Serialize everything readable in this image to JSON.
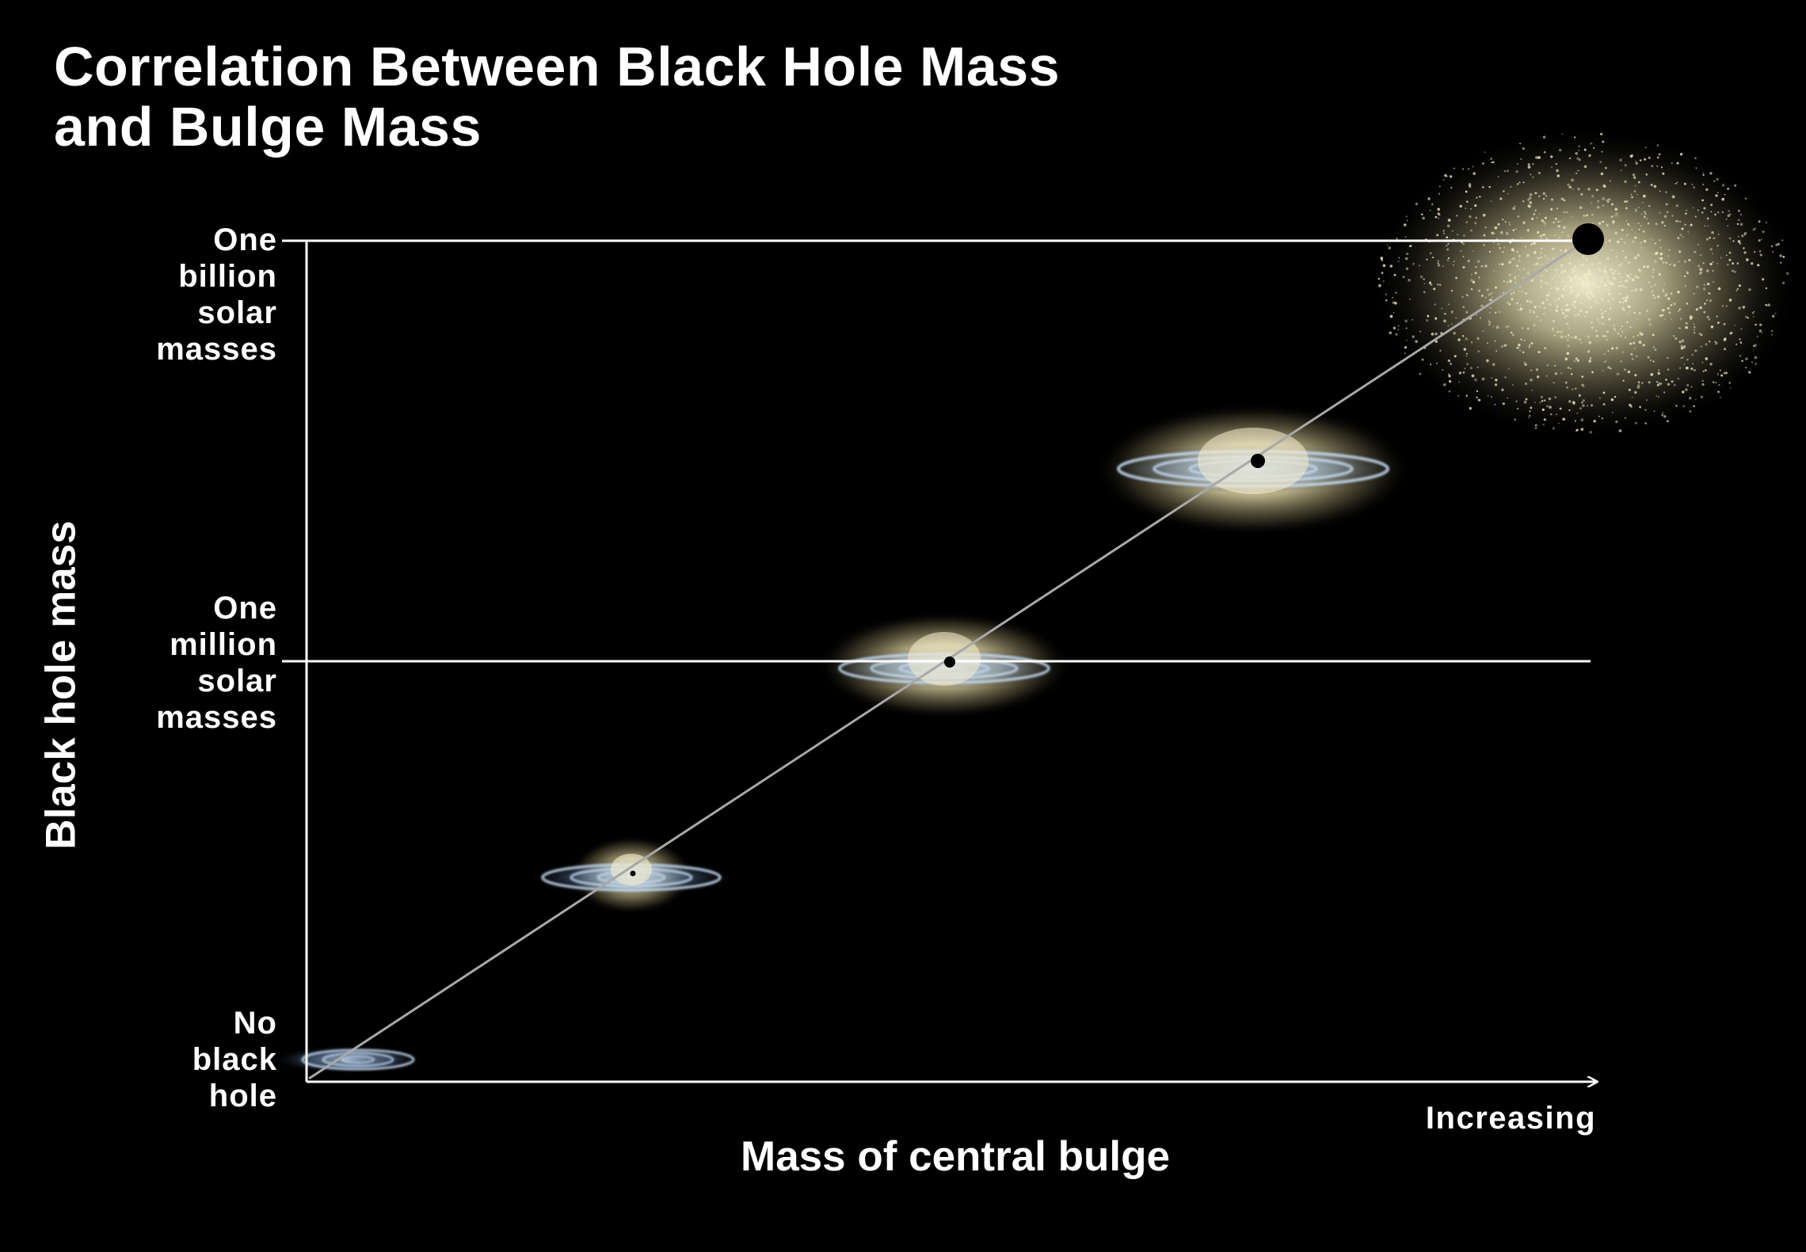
{
  "title": {
    "line1": "Correlation Between Black Hole Mass",
    "line2": "and Bulge Mass"
  },
  "axes": {
    "y_title": "Black hole mass",
    "x_title": "Mass of central bulge",
    "x_direction": "Increasing"
  },
  "y_levels": [
    {
      "lines": [
        "One",
        "billion",
        "solar",
        "masses"
      ]
    },
    {
      "lines": [
        "One",
        "million",
        "solar",
        "masses"
      ]
    },
    {
      "lines": [
        "No",
        "black",
        "hole"
      ]
    }
  ],
  "galaxies": [
    {
      "name": "bulgeless spiral",
      "bulge": "none",
      "black_hole": "none"
    },
    {
      "name": "small-bulge spiral",
      "bulge": "small",
      "black_hole": "small"
    },
    {
      "name": "medium-bulge spiral",
      "bulge": "medium",
      "black_hole": "medium"
    },
    {
      "name": "large-bulge spiral",
      "bulge": "large",
      "black_hole": "large"
    },
    {
      "name": "elliptical galaxy",
      "bulge": "very large",
      "black_hole": "very large"
    }
  ],
  "colors": {
    "background": "#000000",
    "axis": "#ffffff",
    "trend_line": "#9a9a9a",
    "bulge_glow": "#f3ecc0",
    "disk_blue": "#7fa3cf"
  }
}
